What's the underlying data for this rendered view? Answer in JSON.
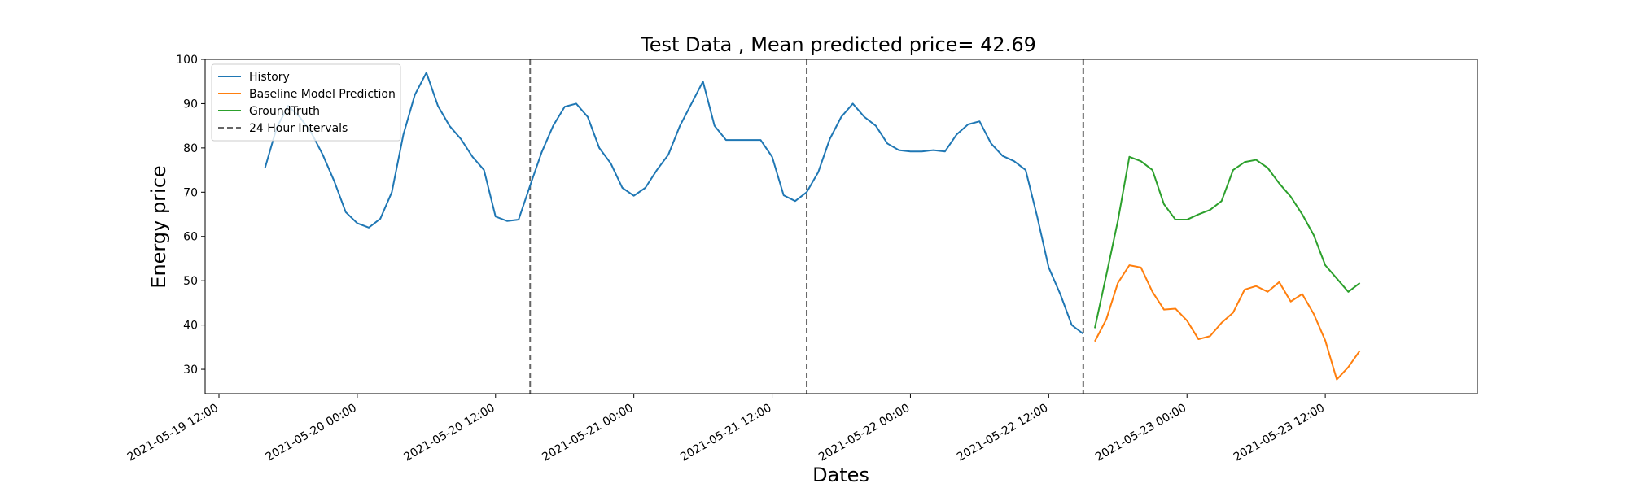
{
  "chart_data": {
    "type": "line",
    "title": "Test Data , Mean predicted price= 42.69",
    "xlabel": "Dates",
    "ylabel": "Energy price",
    "x_range": [
      "2021-05-19 10:48",
      "2021-05-24 01:12"
    ],
    "ylim": [
      24.5,
      100
    ],
    "yticks": [
      30,
      40,
      50,
      60,
      70,
      80,
      90,
      100
    ],
    "xticks": [
      "2021-05-19 12:00",
      "2021-05-20 00:00",
      "2021-05-20 12:00",
      "2021-05-21 00:00",
      "2021-05-21 12:00",
      "2021-05-22 00:00",
      "2021-05-22 12:00",
      "2021-05-23 00:00",
      "2021-05-23 12:00"
    ],
    "legend_position": "top-left",
    "grid": false,
    "series": [
      {
        "name": "History",
        "color": "#1f77b4",
        "start": "2021-05-19 16:00",
        "step_hours": 1,
        "values": [
          75.5,
          84.5,
          89.5,
          87.0,
          83.5,
          78.5,
          72.5,
          65.5,
          63.0,
          62.0,
          64.0,
          70.0,
          83.0,
          92.0,
          97.0,
          89.5,
          85.0,
          82.0,
          78.0,
          75.0,
          64.5,
          63.5,
          63.8,
          71.5,
          79.0,
          85.0,
          89.3,
          90.0,
          87.0,
          80.0,
          76.5,
          71.0,
          69.2,
          71.0,
          75.0,
          78.5,
          85.0,
          90.0,
          95.0,
          85.0,
          81.8,
          81.8,
          81.8,
          81.8,
          78.0,
          69.3,
          68.0,
          70.0,
          74.5,
          82.0,
          87.0,
          90.0,
          87.0,
          85.0,
          81.0,
          79.5,
          79.2,
          79.2,
          79.5,
          79.2,
          83.0,
          85.3,
          86.0,
          81.0,
          78.2,
          77.0,
          75.0,
          64.5,
          53.0,
          47.0,
          40.0,
          38.0
        ]
      },
      {
        "name": "Baseline Model Prediction",
        "color": "#ff7f0e",
        "start": "2021-05-22 16:00",
        "step_hours": 1,
        "values": [
          36.3,
          41.3,
          49.5,
          53.5,
          53.0,
          47.5,
          43.5,
          43.7,
          41.0,
          36.8,
          37.5,
          40.5,
          42.8,
          48.0,
          48.8,
          47.5,
          49.7,
          45.3,
          47.0,
          42.5,
          36.5,
          27.7,
          30.5,
          34.2
        ]
      },
      {
        "name": "GroundTruth",
        "color": "#2ca02c",
        "start": "2021-05-22 16:00",
        "step_hours": 1,
        "values": [
          39.3,
          51.3,
          63.5,
          78.0,
          77.0,
          75.0,
          67.3,
          63.8,
          63.8,
          65.0,
          66.0,
          68.0,
          75.0,
          76.8,
          77.3,
          75.5,
          72.0,
          69.0,
          65.0,
          60.3,
          53.5,
          50.5,
          47.5,
          49.5
        ]
      },
      {
        "name": "24 Hour Intervals",
        "color": "#666666",
        "style": "dashed",
        "vlines": [
          "2021-05-20 15:00",
          "2021-05-21 15:00",
          "2021-05-22 15:00"
        ]
      }
    ]
  }
}
